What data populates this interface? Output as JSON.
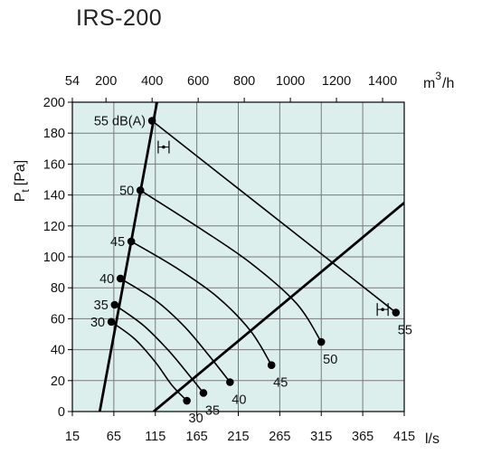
{
  "chart_data": {
    "type": "line",
    "title": "IRS-200",
    "x_bottom": {
      "label": "l/s",
      "range": [
        15,
        415
      ],
      "ticks": [
        15,
        65,
        115,
        165,
        215,
        265,
        315,
        365,
        415
      ]
    },
    "x_top": {
      "label_base": "m",
      "label_exp": "3",
      "label_den": "h",
      "tick_labels": [
        "54",
        "200",
        "400",
        "600",
        "800",
        "1000",
        "1200",
        "1400"
      ],
      "tick_ls": [
        15,
        55.56,
        111.11,
        166.67,
        222.22,
        277.78,
        333.33,
        388.89
      ]
    },
    "y": {
      "label_main": "P",
      "label_sub": "t",
      "label_unit": "[Pa]",
      "range": [
        0,
        200
      ],
      "ticks": [
        0,
        20,
        40,
        60,
        80,
        100,
        120,
        140,
        160,
        180,
        200
      ]
    },
    "grid": true,
    "plot_background": "#dcefed",
    "grid_color": "#7a7a7a",
    "line_color": "#000000",
    "boundary_lines": [
      {
        "name": "min",
        "points": [
          [
            48,
            0
          ],
          [
            117,
            200
          ]
        ]
      },
      {
        "name": "max",
        "points": [
          [
            113,
            0
          ],
          [
            415,
            135
          ]
        ]
      }
    ],
    "series": [
      {
        "name": "30",
        "points": [
          [
            62,
            58
          ],
          [
            90,
            47
          ],
          [
            115,
            32
          ],
          [
            135,
            17
          ],
          [
            153,
            7
          ]
        ]
      },
      {
        "name": "35",
        "points": [
          [
            66,
            69
          ],
          [
            100,
            56
          ],
          [
            130,
            40
          ],
          [
            155,
            24
          ],
          [
            173,
            12
          ]
        ]
      },
      {
        "name": "40",
        "points": [
          [
            73,
            86
          ],
          [
            115,
            72
          ],
          [
            150,
            55
          ],
          [
            180,
            36
          ],
          [
            205,
            19
          ]
        ]
      },
      {
        "name": "45",
        "points": [
          [
            86,
            110
          ],
          [
            140,
            93
          ],
          [
            190,
            74
          ],
          [
            230,
            52
          ],
          [
            255,
            30
          ]
        ]
      },
      {
        "name": "50",
        "points": [
          [
            97,
            143
          ],
          [
            170,
            118
          ],
          [
            230,
            96
          ],
          [
            285,
            70
          ],
          [
            315,
            45
          ]
        ]
      },
      {
        "name": "55 dB(A)",
        "points": [
          [
            111,
            188
          ],
          [
            405,
            64
          ]
        ]
      }
    ],
    "label_texts": [
      "55 dB(A)",
      "50",
      "45",
      "40",
      "35",
      "30",
      "30",
      "35",
      "40",
      "45",
      "50",
      "55"
    ],
    "label_anchor_points": [
      [
        111,
        188
      ],
      [
        97,
        143
      ],
      [
        86,
        110
      ],
      [
        73,
        86
      ],
      [
        66,
        69
      ],
      [
        62,
        58
      ],
      [
        153,
        7
      ],
      [
        173,
        12
      ],
      [
        205,
        19
      ],
      [
        255,
        30
      ],
      [
        315,
        45
      ],
      [
        405,
        64
      ]
    ],
    "label_sides": [
      "left",
      "left",
      "left",
      "left",
      "left",
      "left",
      "below",
      "below",
      "below",
      "below",
      "below",
      "below"
    ],
    "markers": [
      "min-marker",
      "max-marker"
    ],
    "marker_positions": [
      [
        125,
        171
      ],
      [
        389,
        66
      ]
    ]
  }
}
